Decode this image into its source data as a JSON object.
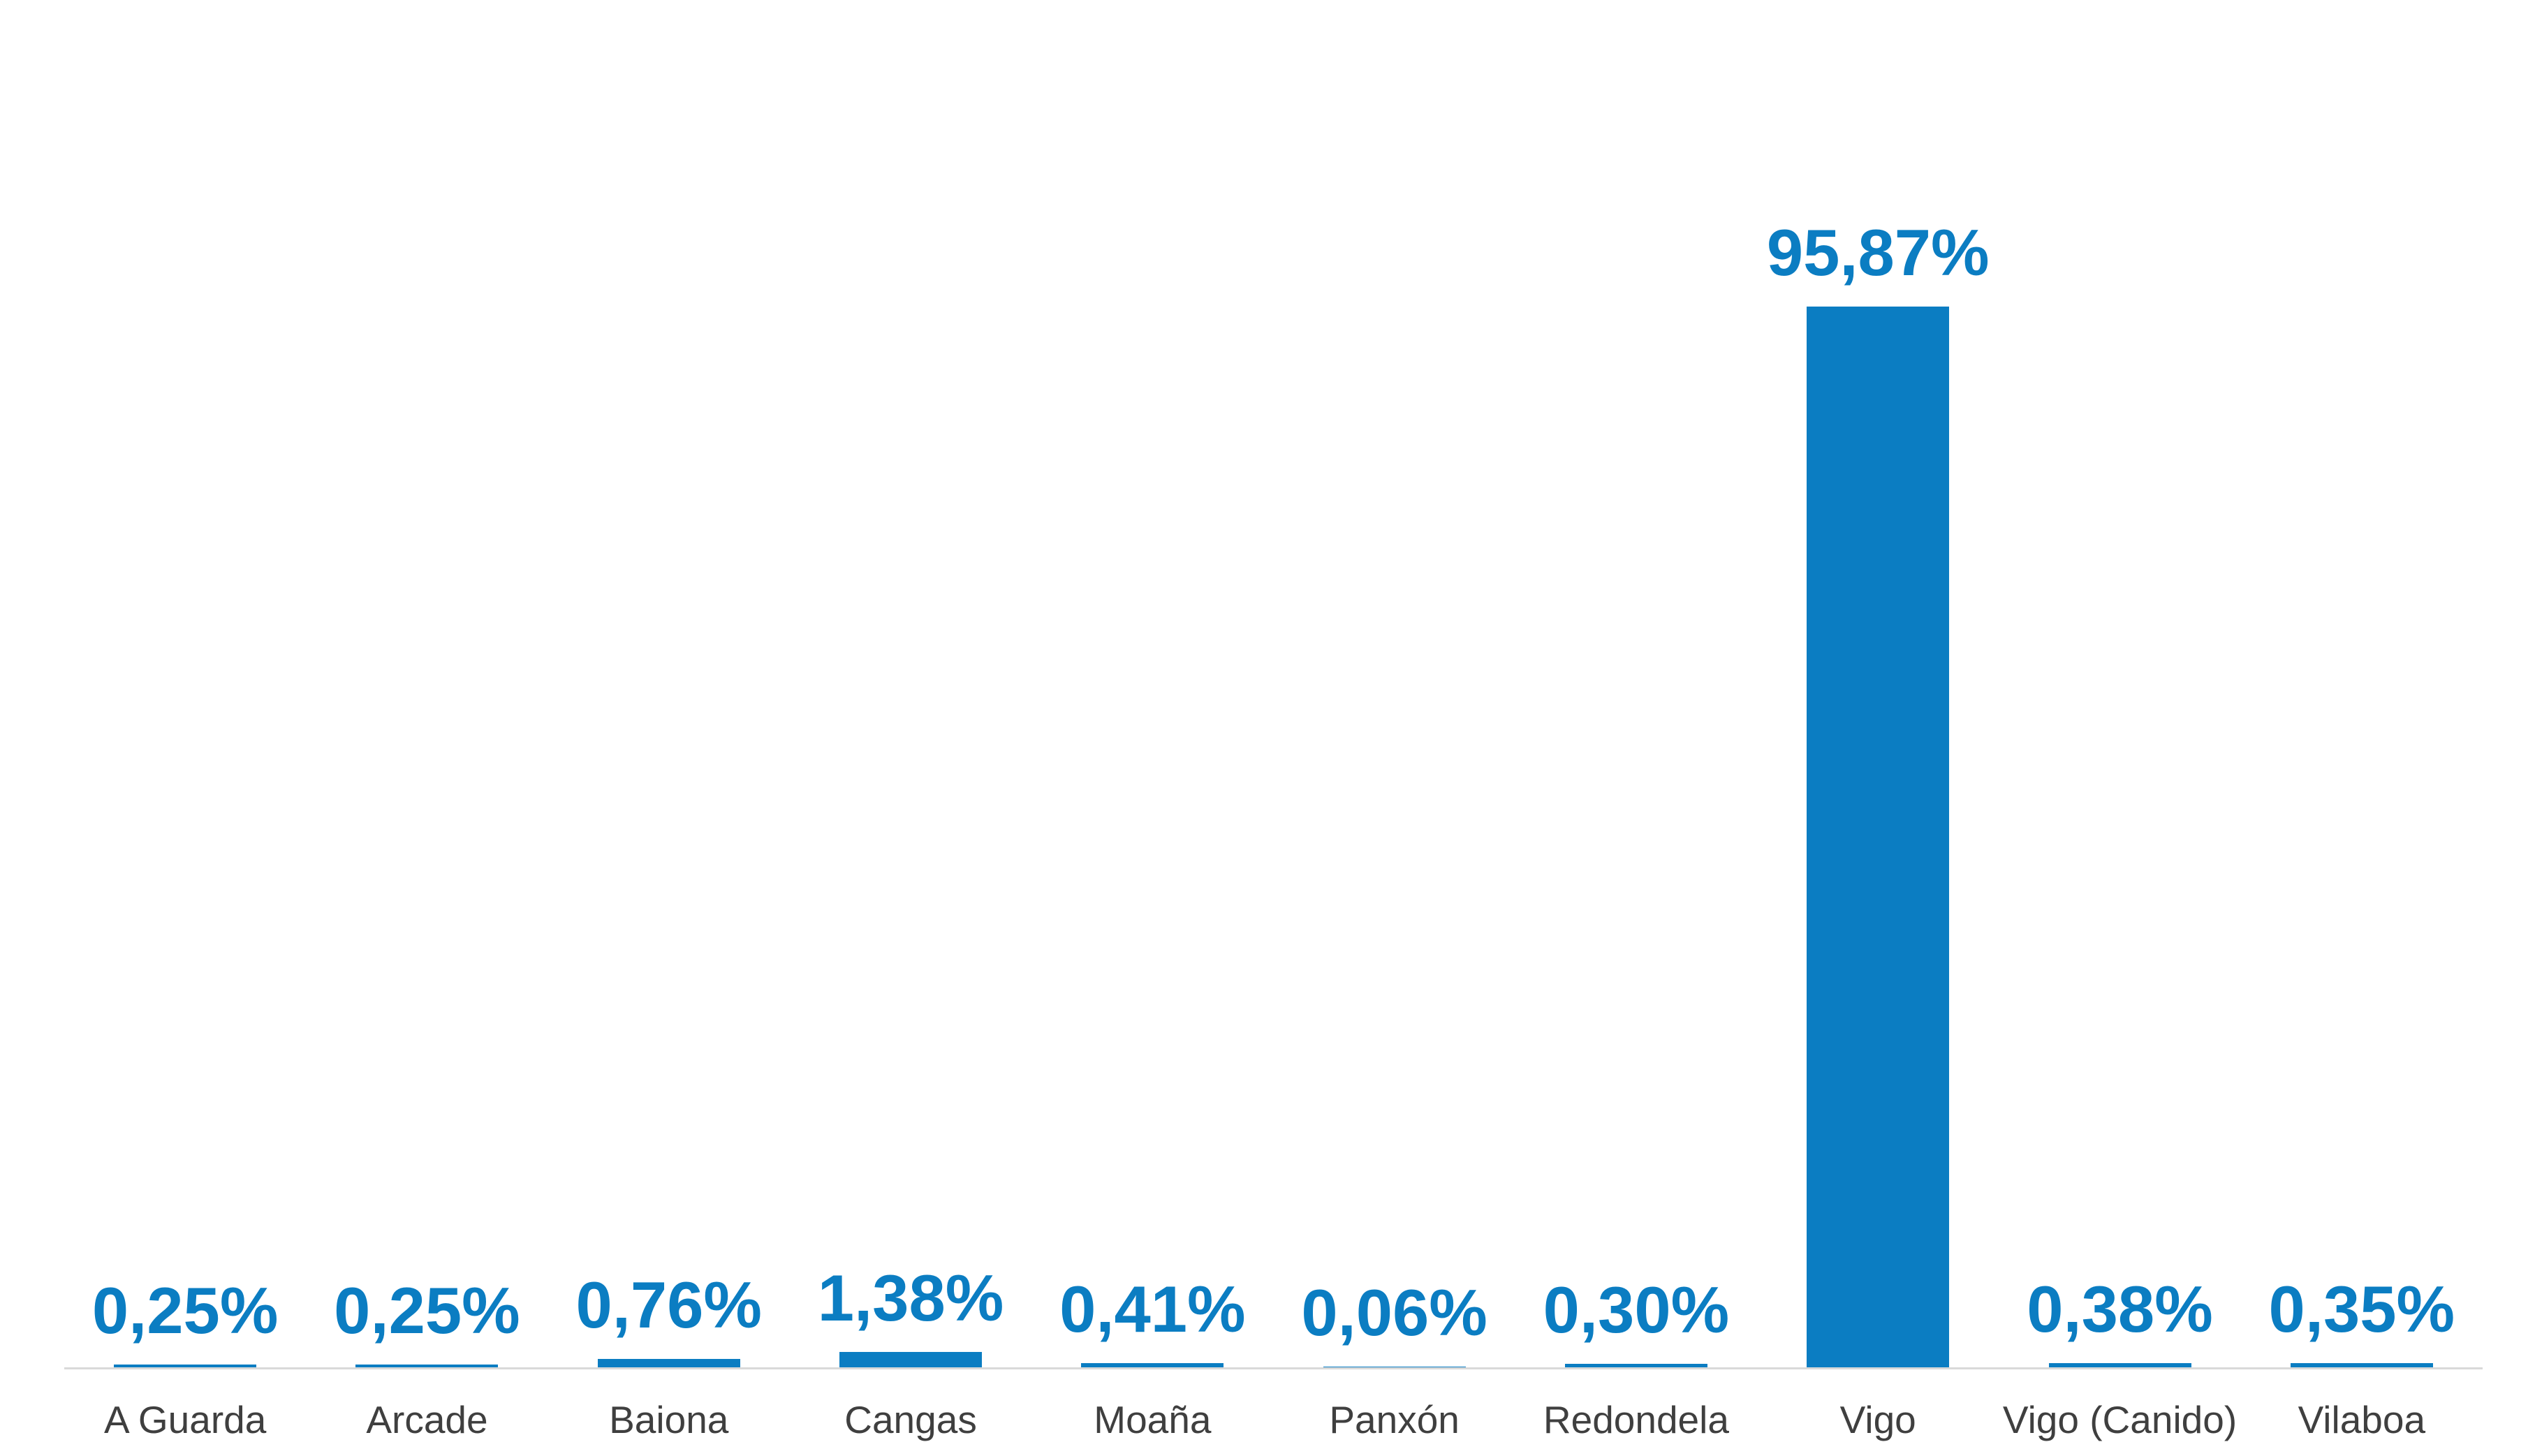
{
  "chart_data": {
    "type": "bar",
    "categories": [
      "A Guarda",
      "Arcade",
      "Baiona",
      "Cangas",
      "Moaña",
      "Panxón",
      "Redondela",
      "Vigo",
      "Vigo (Canido)",
      "Vilaboa"
    ],
    "values": [
      0.25,
      0.25,
      0.76,
      1.38,
      0.41,
      0.06,
      0.3,
      95.87,
      0.38,
      0.35
    ],
    "value_labels": [
      "0,25%",
      "0,25%",
      "0,76%",
      "1,38%",
      "0,41%",
      "0,06%",
      "0,30%",
      "95,87%",
      "0,38%",
      "0,35%"
    ],
    "title": "",
    "xlabel": "",
    "ylabel": "",
    "ylim": [
      0,
      100
    ],
    "grid": false,
    "legend": false,
    "decimal_separator": ",",
    "bar_color": "#0b7dc2",
    "value_label_color": "#0b7dc2",
    "category_label_color": "#3f3f3f",
    "axis_line_color": "#d9d9d9",
    "background_color": "#ffffff"
  }
}
